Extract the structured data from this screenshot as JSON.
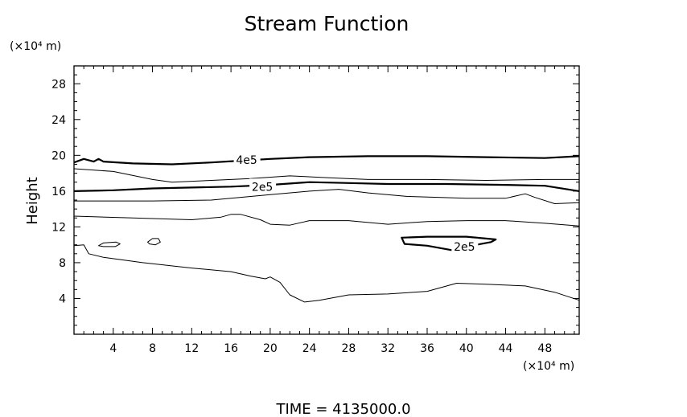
{
  "chart_data": {
    "type": "contour",
    "title": "Stream Function",
    "ylabel": "Height",
    "y_unit": "(×10⁴ m)",
    "x_unit": "(×10⁴ m)",
    "xlim": [
      0,
      51.5
    ],
    "ylim": [
      0,
      30
    ],
    "x_ticks": [
      4,
      8,
      12,
      16,
      20,
      24,
      28,
      32,
      36,
      40,
      44,
      48
    ],
    "y_ticks": [
      4,
      8,
      12,
      16,
      20,
      24,
      28
    ],
    "grid": false,
    "footer": "TIME  =  4135000.0",
    "contours": [
      {
        "id": "c4e5",
        "label": "4e5",
        "label_at": [
          17.6,
          19.5
        ],
        "bold": true,
        "points": [
          [
            0,
            19.2
          ],
          [
            1,
            19.6
          ],
          [
            2,
            19.3
          ],
          [
            2.5,
            19.6
          ],
          [
            3,
            19.3
          ],
          [
            6,
            19.1
          ],
          [
            10,
            19.0
          ],
          [
            14,
            19.2
          ],
          [
            17,
            19.4
          ],
          [
            20,
            19.6
          ],
          [
            24,
            19.8
          ],
          [
            30,
            19.9
          ],
          [
            36,
            19.9
          ],
          [
            42,
            19.8
          ],
          [
            48,
            19.7
          ],
          [
            51.5,
            19.9
          ]
        ]
      },
      {
        "id": "c3e5",
        "label": "",
        "bold": false,
        "points": [
          [
            0,
            18.5
          ],
          [
            4,
            18.2
          ],
          [
            8,
            17.3
          ],
          [
            10,
            17.0
          ],
          [
            14,
            17.2
          ],
          [
            18,
            17.4
          ],
          [
            22,
            17.7
          ],
          [
            26,
            17.5
          ],
          [
            30,
            17.3
          ],
          [
            36,
            17.3
          ],
          [
            42,
            17.2
          ],
          [
            48,
            17.3
          ],
          [
            51.5,
            17.3
          ]
        ]
      },
      {
        "id": "c2e5",
        "label": "2e5",
        "label_at": [
          19.2,
          16.5
        ],
        "bold": true,
        "points": [
          [
            0,
            16.0
          ],
          [
            4,
            16.1
          ],
          [
            8,
            16.3
          ],
          [
            12,
            16.4
          ],
          [
            16,
            16.5
          ],
          [
            20,
            16.7
          ],
          [
            24,
            17.0
          ],
          [
            28,
            16.9
          ],
          [
            32,
            16.8
          ],
          [
            38,
            16.8
          ],
          [
            44,
            16.7
          ],
          [
            48,
            16.6
          ],
          [
            51.5,
            16.0
          ]
        ]
      },
      {
        "id": "c1e5",
        "label": "",
        "bold": false,
        "points": [
          [
            0,
            14.9
          ],
          [
            8,
            14.9
          ],
          [
            14,
            15.0
          ],
          [
            20,
            15.6
          ],
          [
            24,
            16.0
          ],
          [
            27,
            16.2
          ],
          [
            30,
            15.8
          ],
          [
            34,
            15.4
          ],
          [
            40,
            15.2
          ],
          [
            44,
            15.2
          ],
          [
            46,
            15.7
          ],
          [
            47,
            15.3
          ],
          [
            49,
            14.6
          ],
          [
            51.5,
            14.7
          ]
        ]
      },
      {
        "id": "c0",
        "label": "",
        "bold": false,
        "points": [
          [
            0,
            13.2
          ],
          [
            6,
            13.0
          ],
          [
            12,
            12.8
          ],
          [
            15,
            13.1
          ],
          [
            16,
            13.4
          ],
          [
            17,
            13.4
          ],
          [
            19,
            12.8
          ],
          [
            20,
            12.3
          ],
          [
            22,
            12.2
          ],
          [
            24,
            12.7
          ],
          [
            28,
            12.7
          ],
          [
            32,
            12.3
          ],
          [
            36,
            12.6
          ],
          [
            40,
            12.7
          ],
          [
            44,
            12.7
          ],
          [
            48,
            12.4
          ],
          [
            51.5,
            12.1
          ]
        ]
      },
      {
        "id": "cneg",
        "label": "",
        "bold": false,
        "points": [
          [
            0,
            9.9
          ],
          [
            1,
            10.0
          ],
          [
            1.5,
            9.0
          ],
          [
            3,
            8.6
          ],
          [
            7,
            8.0
          ],
          [
            12,
            7.4
          ],
          [
            16,
            7.0
          ],
          [
            18,
            6.5
          ],
          [
            19.5,
            6.2
          ],
          [
            20,
            6.4
          ],
          [
            21,
            5.8
          ],
          [
            22,
            4.4
          ],
          [
            23.5,
            3.6
          ],
          [
            25,
            3.8
          ],
          [
            28,
            4.4
          ],
          [
            32,
            4.5
          ],
          [
            36,
            4.8
          ],
          [
            39,
            5.7
          ],
          [
            42,
            5.6
          ],
          [
            46,
            5.4
          ],
          [
            49,
            4.7
          ],
          [
            51.5,
            3.8
          ]
        ]
      }
    ],
    "closed_contours": [
      {
        "id": "loop-a",
        "label": "",
        "bold": false,
        "points": [
          [
            2.5,
            9.9
          ],
          [
            3.0,
            10.2
          ],
          [
            4.3,
            10.3
          ],
          [
            4.7,
            10.1
          ],
          [
            4.2,
            9.8
          ],
          [
            3.0,
            9.8
          ],
          [
            2.5,
            9.9
          ]
        ]
      },
      {
        "id": "loop-b",
        "label": "",
        "bold": false,
        "points": [
          [
            7.5,
            10.3
          ],
          [
            8.0,
            10.7
          ],
          [
            8.6,
            10.7
          ],
          [
            8.8,
            10.3
          ],
          [
            8.3,
            10.0
          ],
          [
            7.7,
            10.1
          ],
          [
            7.5,
            10.3
          ]
        ]
      },
      {
        "id": "loop-2e5",
        "label": "2e5",
        "label_at": [
          39.8,
          9.8
        ],
        "bold": true,
        "points": [
          [
            33.4,
            10.8
          ],
          [
            36,
            10.9
          ],
          [
            40,
            10.9
          ],
          [
            43,
            10.6
          ],
          [
            42.5,
            10.3
          ],
          [
            40,
            9.8
          ],
          [
            38.5,
            9.4
          ],
          [
            36,
            9.9
          ],
          [
            33.7,
            10.1
          ],
          [
            33.4,
            10.8
          ]
        ]
      }
    ]
  }
}
